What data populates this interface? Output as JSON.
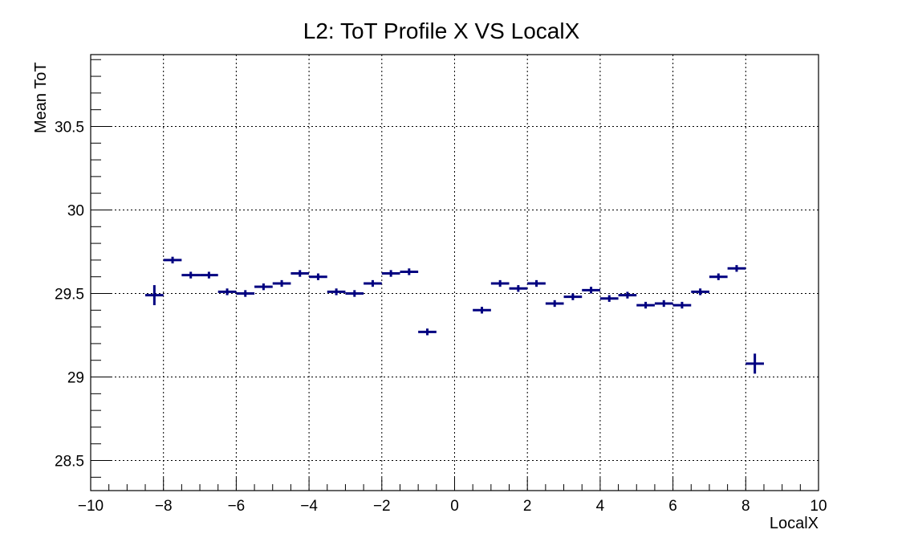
{
  "chart_data": {
    "type": "scatter",
    "title": "L2: ToT Profile X VS LocalX",
    "xlabel": "LocalX",
    "ylabel": "Mean ToT",
    "xlim": [
      -10,
      10
    ],
    "ylim": [
      28.32,
      30.93
    ],
    "grid": true,
    "x_ticks": [
      -10,
      -8,
      -6,
      -4,
      -2,
      0,
      2,
      4,
      6,
      8,
      10
    ],
    "x_tick_labels": [
      "−10",
      "−8",
      "−6",
      "−4",
      "−2",
      "0",
      "2",
      "4",
      "6",
      "8",
      "10"
    ],
    "y_ticks": [
      28.5,
      29,
      29.5,
      30,
      30.5
    ],
    "y_tick_labels": [
      "28.5",
      "29",
      "29.5",
      "30",
      "30.5"
    ],
    "marker_color": "#000080",
    "series": [
      {
        "points": [
          {
            "x": -8.25,
            "y": 29.49,
            "xerr": 0.25,
            "yerr": 0.06
          },
          {
            "x": -7.75,
            "y": 29.7,
            "xerr": 0.25,
            "yerr": 0.02
          },
          {
            "x": -7.25,
            "y": 29.61,
            "xerr": 0.25,
            "yerr": 0.02
          },
          {
            "x": -6.75,
            "y": 29.61,
            "xerr": 0.25,
            "yerr": 0.02
          },
          {
            "x": -6.25,
            "y": 29.51,
            "xerr": 0.25,
            "yerr": 0.02
          },
          {
            "x": -5.75,
            "y": 29.5,
            "xerr": 0.25,
            "yerr": 0.02
          },
          {
            "x": -5.25,
            "y": 29.54,
            "xerr": 0.25,
            "yerr": 0.02
          },
          {
            "x": -4.75,
            "y": 29.56,
            "xerr": 0.25,
            "yerr": 0.02
          },
          {
            "x": -4.25,
            "y": 29.62,
            "xerr": 0.25,
            "yerr": 0.02
          },
          {
            "x": -3.75,
            "y": 29.6,
            "xerr": 0.25,
            "yerr": 0.02
          },
          {
            "x": -3.25,
            "y": 29.51,
            "xerr": 0.25,
            "yerr": 0.02
          },
          {
            "x": -2.75,
            "y": 29.5,
            "xerr": 0.25,
            "yerr": 0.02
          },
          {
            "x": -2.25,
            "y": 29.56,
            "xerr": 0.25,
            "yerr": 0.02
          },
          {
            "x": -1.75,
            "y": 29.62,
            "xerr": 0.25,
            "yerr": 0.02
          },
          {
            "x": -1.25,
            "y": 29.63,
            "xerr": 0.25,
            "yerr": 0.02
          },
          {
            "x": -0.75,
            "y": 29.27,
            "xerr": 0.25,
            "yerr": 0.02
          },
          {
            "x": 0.75,
            "y": 29.4,
            "xerr": 0.25,
            "yerr": 0.02
          },
          {
            "x": 1.25,
            "y": 29.56,
            "xerr": 0.25,
            "yerr": 0.02
          },
          {
            "x": 1.75,
            "y": 29.53,
            "xerr": 0.25,
            "yerr": 0.02
          },
          {
            "x": 2.25,
            "y": 29.56,
            "xerr": 0.25,
            "yerr": 0.02
          },
          {
            "x": 2.75,
            "y": 29.44,
            "xerr": 0.25,
            "yerr": 0.02
          },
          {
            "x": 3.25,
            "y": 29.48,
            "xerr": 0.25,
            "yerr": 0.02
          },
          {
            "x": 3.75,
            "y": 29.52,
            "xerr": 0.25,
            "yerr": 0.02
          },
          {
            "x": 4.25,
            "y": 29.47,
            "xerr": 0.25,
            "yerr": 0.02
          },
          {
            "x": 4.75,
            "y": 29.49,
            "xerr": 0.25,
            "yerr": 0.02
          },
          {
            "x": 5.25,
            "y": 29.43,
            "xerr": 0.25,
            "yerr": 0.02
          },
          {
            "x": 5.75,
            "y": 29.44,
            "xerr": 0.25,
            "yerr": 0.02
          },
          {
            "x": 6.25,
            "y": 29.43,
            "xerr": 0.25,
            "yerr": 0.02
          },
          {
            "x": 6.75,
            "y": 29.51,
            "xerr": 0.25,
            "yerr": 0.02
          },
          {
            "x": 7.25,
            "y": 29.6,
            "xerr": 0.25,
            "yerr": 0.02
          },
          {
            "x": 7.75,
            "y": 29.65,
            "xerr": 0.25,
            "yerr": 0.02
          },
          {
            "x": 8.25,
            "y": 29.08,
            "xerr": 0.25,
            "yerr": 0.06
          }
        ]
      }
    ]
  }
}
